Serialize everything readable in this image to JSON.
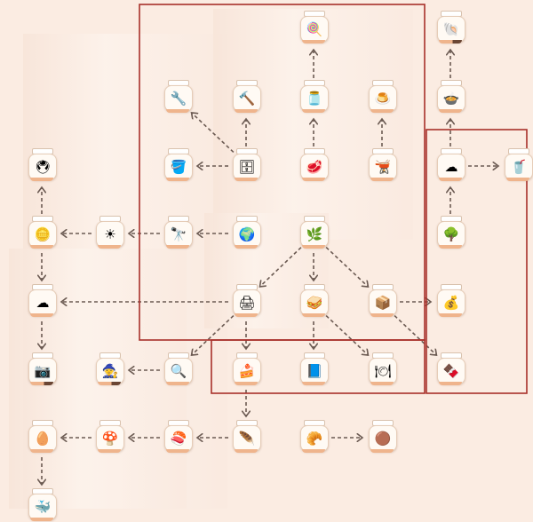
{
  "diagram": {
    "nodes": [
      {
        "id": "A",
        "icon": "lollipop-icon",
        "glyph": "🍭"
      },
      {
        "id": "B",
        "icon": "shell-icon",
        "glyph": "🐚",
        "dark_bar": true
      },
      {
        "id": "C",
        "icon": "tool-icon",
        "glyph": "🔧"
      },
      {
        "id": "D",
        "icon": "drill-icon",
        "glyph": "🔨"
      },
      {
        "id": "E",
        "icon": "jar-icon",
        "glyph": "🫙"
      },
      {
        "id": "F",
        "icon": "cake-icon",
        "glyph": "🍮"
      },
      {
        "id": "G",
        "icon": "bowl-icon",
        "glyph": "🍲"
      },
      {
        "id": "H",
        "icon": "machine-icon",
        "glyph": "🖲"
      },
      {
        "id": "I",
        "icon": "bucket-icon",
        "glyph": "🪣"
      },
      {
        "id": "J",
        "icon": "fridge-icon",
        "glyph": "🗄"
      },
      {
        "id": "K",
        "icon": "meat-icon",
        "glyph": "🥩"
      },
      {
        "id": "L",
        "icon": "pot-icon",
        "glyph": "🫕"
      },
      {
        "id": "M",
        "icon": "steam-icon",
        "glyph": "☁"
      },
      {
        "id": "N",
        "icon": "drink-icon",
        "glyph": "🥤"
      },
      {
        "id": "O",
        "icon": "coin-icon",
        "glyph": "🪙"
      },
      {
        "id": "P",
        "icon": "sun-icon",
        "glyph": "☀"
      },
      {
        "id": "Q",
        "icon": "telescope-icon",
        "glyph": "🔭"
      },
      {
        "id": "R",
        "icon": "globe-icon",
        "glyph": "🌍"
      },
      {
        "id": "S",
        "icon": "plant-box-icon",
        "glyph": "🌿"
      },
      {
        "id": "T",
        "icon": "tree-icon",
        "glyph": "🌳"
      },
      {
        "id": "U",
        "icon": "cloud-icon",
        "glyph": "☁"
      },
      {
        "id": "V",
        "icon": "printer-icon",
        "glyph": "🖨"
      },
      {
        "id": "W",
        "icon": "layers-icon",
        "glyph": "🥪"
      },
      {
        "id": "X",
        "icon": "box-icon",
        "glyph": "📦"
      },
      {
        "id": "Y",
        "icon": "gold-bag-icon",
        "glyph": "💰"
      },
      {
        "id": "Z",
        "icon": "camera-icon",
        "glyph": "📷",
        "dark_bar": true
      },
      {
        "id": "AA",
        "icon": "wizard-hat-icon",
        "glyph": "🧙",
        "dark_bar": true
      },
      {
        "id": "AB",
        "icon": "magnifier-icon",
        "glyph": "🔍"
      },
      {
        "id": "AC",
        "icon": "cake-box-icon",
        "glyph": "🍰"
      },
      {
        "id": "AD",
        "icon": "book-icon",
        "glyph": "📘"
      },
      {
        "id": "AE",
        "icon": "plate-icon",
        "glyph": "🍽"
      },
      {
        "id": "AF",
        "icon": "chocolate-icon",
        "glyph": "🍫"
      },
      {
        "id": "AG",
        "icon": "egg-icon",
        "glyph": "🥚"
      },
      {
        "id": "AH",
        "icon": "mushroom-icon",
        "glyph": "🍄"
      },
      {
        "id": "AI",
        "icon": "sushi-icon",
        "glyph": "🍣"
      },
      {
        "id": "AJ",
        "icon": "feather-icon",
        "glyph": "🪶"
      },
      {
        "id": "AK",
        "icon": "bread-icon",
        "glyph": "🥐"
      },
      {
        "id": "AL",
        "icon": "ball-icon",
        "glyph": "🟤"
      },
      {
        "id": "AM",
        "icon": "whale-icon",
        "glyph": "🐳"
      }
    ],
    "edges": [
      [
        "E",
        "A"
      ],
      [
        "J",
        "D"
      ],
      [
        "J",
        "C"
      ],
      [
        "J",
        "I"
      ],
      [
        "K",
        "E"
      ],
      [
        "L",
        "F"
      ],
      [
        "M",
        "G"
      ],
      [
        "G",
        "B"
      ],
      [
        "M",
        "N"
      ],
      [
        "T",
        "M"
      ],
      [
        "O",
        "H"
      ],
      [
        "P",
        "O"
      ],
      [
        "Q",
        "P"
      ],
      [
        "R",
        "Q"
      ],
      [
        "S",
        "V"
      ],
      [
        "S",
        "W"
      ],
      [
        "S",
        "X"
      ],
      [
        "V",
        "U"
      ],
      [
        "O",
        "U"
      ],
      [
        "U",
        "Z"
      ],
      [
        "V",
        "AC"
      ],
      [
        "V",
        "AB"
      ],
      [
        "AB",
        "AA"
      ],
      [
        "W",
        "AD"
      ],
      [
        "W",
        "AE"
      ],
      [
        "X",
        "Y"
      ],
      [
        "X",
        "AF"
      ],
      [
        "AC",
        "AJ"
      ],
      [
        "AJ",
        "AI"
      ],
      [
        "AI",
        "AH"
      ],
      [
        "AH",
        "AG"
      ],
      [
        "AG",
        "AM"
      ],
      [
        "AK",
        "AL"
      ]
    ],
    "colors": {
      "highlight_box": "#a8302a",
      "edge": "#6b5a52",
      "background": "#fbece2"
    }
  }
}
